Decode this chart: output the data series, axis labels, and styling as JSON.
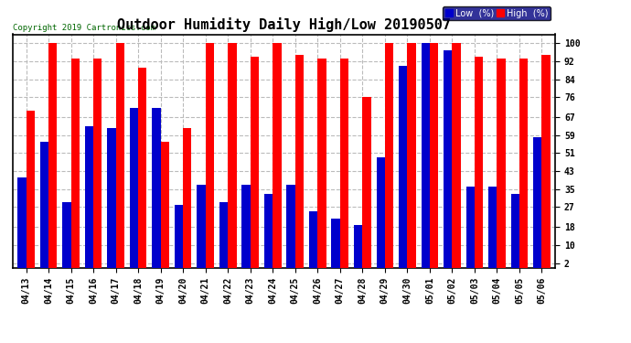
{
  "title": "Outdoor Humidity Daily High/Low 20190507",
  "copyright": "Copyright 2019 Cartronics.com",
  "categories": [
    "04/13",
    "04/14",
    "04/15",
    "04/16",
    "04/17",
    "04/18",
    "04/19",
    "04/20",
    "04/21",
    "04/22",
    "04/23",
    "04/24",
    "04/25",
    "04/26",
    "04/27",
    "04/28",
    "04/29",
    "04/30",
    "05/01",
    "05/02",
    "05/03",
    "05/04",
    "05/05",
    "05/06"
  ],
  "high": [
    70,
    100,
    93,
    93,
    100,
    89,
    56,
    62,
    100,
    100,
    94,
    100,
    95,
    93,
    93,
    76,
    100,
    100,
    100,
    100,
    94,
    93,
    93,
    95
  ],
  "low": [
    40,
    56,
    29,
    63,
    62,
    71,
    71,
    28,
    37,
    29,
    37,
    33,
    37,
    25,
    22,
    19,
    49,
    90,
    100,
    97,
    36,
    36,
    33,
    58
  ],
  "high_color": "#ff0000",
  "low_color": "#0000cc",
  "bg_color": "#ffffff",
  "grid_color": "#bbbbbb",
  "yticks": [
    2,
    10,
    18,
    27,
    35,
    43,
    51,
    59,
    67,
    76,
    84,
    92,
    100
  ],
  "ymin": 0,
  "ymax": 104,
  "bar_width": 0.38,
  "title_fontsize": 11,
  "tick_fontsize": 7,
  "legend_low_label": "Low  (%)",
  "legend_high_label": "High  (%)"
}
